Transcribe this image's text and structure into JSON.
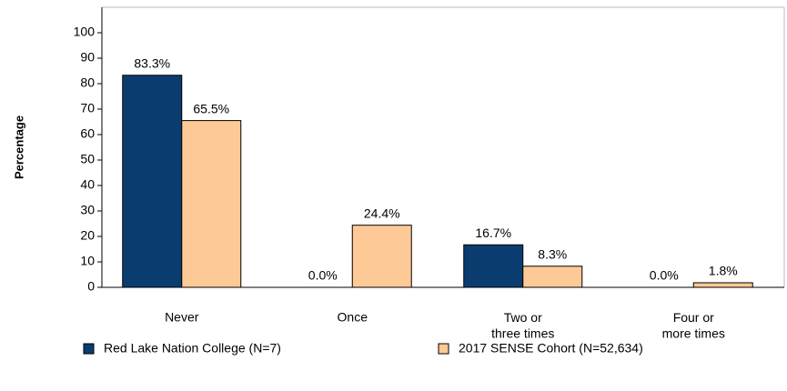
{
  "chart_data": {
    "type": "bar",
    "y_label": "Percentage",
    "categories": [
      "Never",
      "Once",
      "Two or\nthree times",
      "Four or\nmore times"
    ],
    "series": [
      {
        "name": "Red Lake Nation College (N=7)",
        "color": "#0b3c70",
        "values": [
          83.3,
          0,
          16.7,
          0
        ],
        "value_labels": [
          "83.3%",
          "0.0%",
          "16.7%",
          "0.0%"
        ]
      },
      {
        "name": "2017 SENSE Cohort (N=52,634)",
        "color": "#fdc996",
        "values": [
          65.5,
          24.4,
          8.3,
          1.8
        ],
        "value_labels": [
          "65.5%",
          "24.4%",
          "8.3%",
          "1.8%"
        ]
      }
    ],
    "ylim": [
      0,
      110
    ],
    "yticks": [
      0,
      10,
      20,
      30,
      40,
      50,
      60,
      70,
      80,
      90,
      100
    ],
    "legend": "bottom"
  }
}
